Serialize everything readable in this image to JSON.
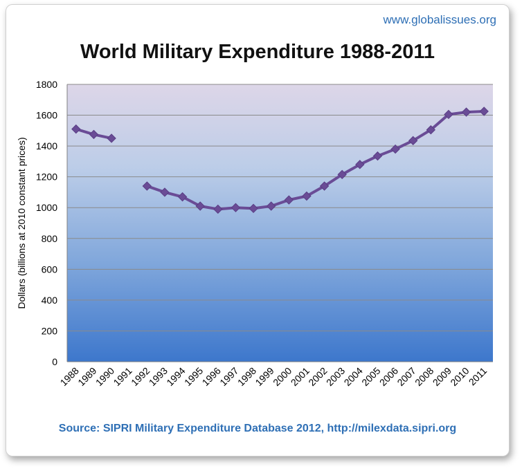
{
  "site": "www.globalissues.org",
  "source": "Source: SIPRI Military Expenditure Database 2012, http://milexdata.sipri.org",
  "chart_data": {
    "type": "line",
    "title": "World Military Expenditure 1988-2011",
    "xlabel": "",
    "ylabel": "Dollars (billions at 2010 constant prices)",
    "categories": [
      "1988",
      "1989",
      "1990",
      "1991",
      "1992",
      "1993",
      "1994",
      "1995",
      "1996",
      "1997",
      "1998",
      "1999",
      "2000",
      "2001",
      "2002",
      "2003",
      "2004",
      "2005",
      "2006",
      "2007",
      "2008",
      "2009",
      "2010",
      "2011"
    ],
    "values": [
      1510,
      1475,
      1450,
      null,
      1140,
      1100,
      1070,
      1010,
      990,
      1000,
      995,
      1010,
      1050,
      1075,
      1140,
      1215,
      1280,
      1335,
      1380,
      1435,
      1505,
      1605,
      1620,
      1625
    ],
    "ylim": [
      0,
      1800
    ],
    "yticks": [
      0,
      200,
      400,
      600,
      800,
      1000,
      1200,
      1400,
      1600,
      1800
    ],
    "grid": true,
    "legend": "none",
    "line_color": "#6a4c96"
  }
}
